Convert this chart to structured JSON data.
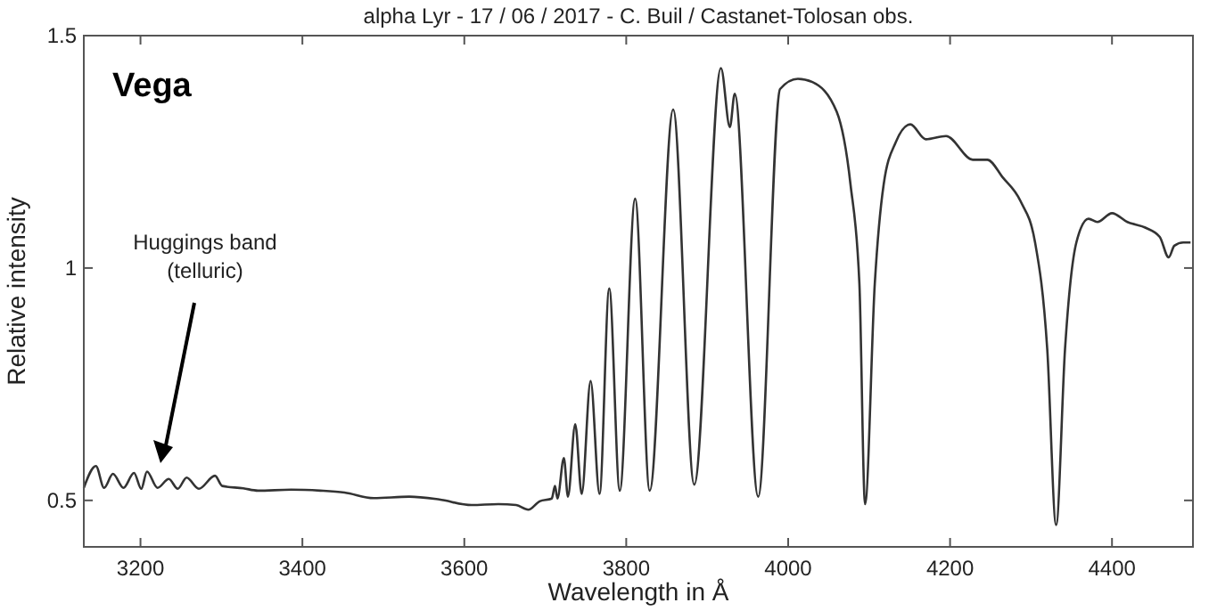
{
  "chart_data": {
    "type": "line",
    "title": "alpha Lyr - 17 / 06 / 2017 - C. Buil / Castanet-Tolosan obs.",
    "xlabel": "Wavelength in Å",
    "ylabel": "Relative intensity",
    "annotations": [
      "Vega",
      "Huggings band\n(telluric)"
    ],
    "xlim": [
      3130,
      4500
    ],
    "ylim": [
      0.4,
      1.5
    ],
    "xticks": [
      3200,
      3400,
      3600,
      3800,
      4000,
      4200,
      4400
    ],
    "yticks": [
      0.5,
      1,
      1.5
    ],
    "grid": false,
    "marker": "none",
    "line_style": "solid",
    "series": [
      {
        "color": "#333333",
        "x": [
          3130,
          3145,
          3155,
          3166,
          3179,
          3192,
          3201,
          3208,
          3221,
          3235,
          3246,
          3257,
          3272,
          3292,
          3301,
          3327,
          3345,
          3386,
          3422,
          3452,
          3488,
          3532,
          3569,
          3609,
          3642,
          3664,
          3679,
          3693,
          3708,
          3712,
          3715,
          3723,
          3728,
          3737,
          3745,
          3756,
          3767,
          3779,
          3792,
          3811,
          3829,
          3858,
          3884,
          3917,
          3928,
          3934,
          3963,
          3990,
          4012,
          4030,
          4060,
          4077,
          4088,
          4095,
          4107,
          4118,
          4133,
          4151,
          4170,
          4195,
          4228,
          4246,
          4265,
          4287,
          4305,
          4320,
          4331,
          4342,
          4356,
          4371,
          4382,
          4400,
          4419,
          4441,
          4459,
          4470,
          4477,
          4488,
          4497
        ],
        "values": [
          0.527,
          0.574,
          0.527,
          0.557,
          0.527,
          0.559,
          0.525,
          0.562,
          0.527,
          0.546,
          0.525,
          0.549,
          0.525,
          0.553,
          0.531,
          0.526,
          0.521,
          0.523,
          0.521,
          0.517,
          0.505,
          0.508,
          0.502,
          0.49,
          0.492,
          0.49,
          0.48,
          0.498,
          0.504,
          0.531,
          0.504,
          0.591,
          0.508,
          0.664,
          0.514,
          0.757,
          0.514,
          0.956,
          0.521,
          1.149,
          0.521,
          1.341,
          0.534,
          1.43,
          1.303,
          1.375,
          0.508,
          1.385,
          1.407,
          1.4,
          1.336,
          1.18,
          0.966,
          0.492,
          0.966,
          1.18,
          1.271,
          1.309,
          1.277,
          1.284,
          1.233,
          1.233,
          1.195,
          1.144,
          1.055,
          0.826,
          0.447,
          0.826,
          1.055,
          1.106,
          1.099,
          1.118,
          1.099,
          1.087,
          1.067,
          1.023,
          1.048,
          1.055,
          1.055
        ]
      }
    ]
  }
}
